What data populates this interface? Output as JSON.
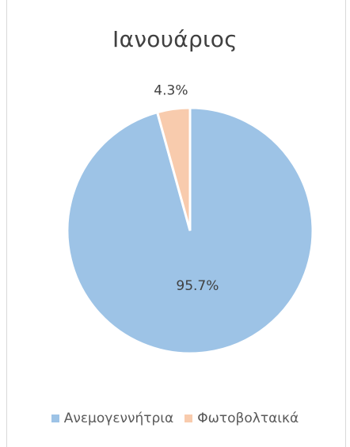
{
  "chart_data": {
    "type": "pie",
    "title": "Ιανουάριος",
    "categories": [
      "Ανεμογεννήτρια",
      "Φωτοβολταικά"
    ],
    "values": [
      95.7,
      4.3
    ],
    "value_labels": [
      "95.7%",
      "4.3%"
    ],
    "colors": [
      "#9dc3e6",
      "#f8cbad"
    ],
    "legend_position": "bottom"
  }
}
